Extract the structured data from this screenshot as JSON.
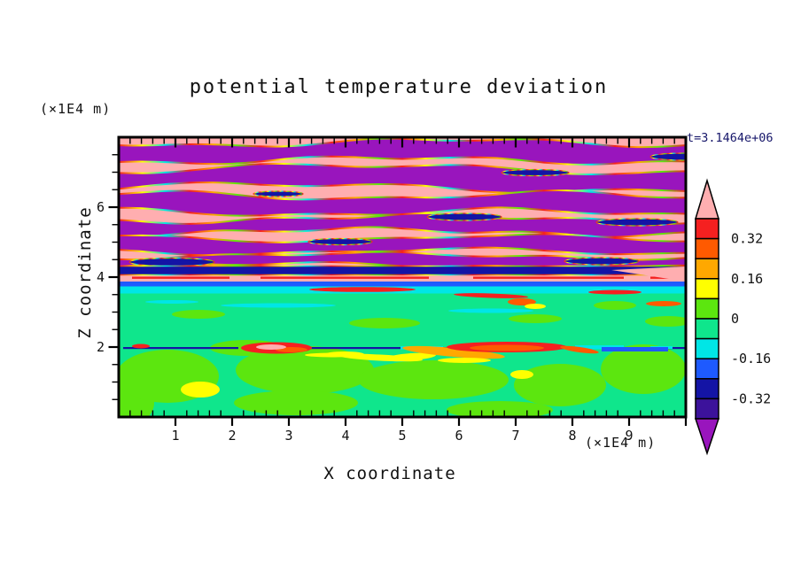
{
  "title": "potential temperature deviation",
  "timestamp": "t=3.1464e+06",
  "axes": {
    "x": {
      "label": "X coordinate",
      "unit": "(×1E4 m)",
      "range": [
        0,
        10
      ],
      "major_ticks": [
        1,
        2,
        3,
        4,
        5,
        6,
        7,
        8,
        9
      ],
      "minor_step": 0.2
    },
    "z": {
      "label": "Z coordinate",
      "unit": "(×1E4 m)",
      "range": [
        0,
        8
      ],
      "major_ticks": [
        2,
        4,
        6
      ],
      "minor_step": 0.5
    }
  },
  "palette": {
    "pink": "#FFAEB0",
    "red": "#F52020",
    "orangered": "#FF5A00",
    "orange": "#FFA800",
    "yellow": "#FFFF00",
    "chartreuse": "#5CE60F",
    "springgreen": "#0FE68C",
    "cyan": "#00E6E6",
    "blue": "#1E5AFF",
    "navy": "#1414A5",
    "indigo": "#3C129B",
    "purple": "#9915BD",
    "frame": "#000000"
  },
  "colorbar": {
    "top_arrow": "pink",
    "bottom_arrow": "purple",
    "box_colors": [
      "red",
      "orangered",
      "orange",
      "yellow",
      "chartreuse",
      "springgreen",
      "cyan",
      "blue",
      "navy",
      "indigo"
    ],
    "labels": [
      "0.32",
      "0.16",
      "0",
      "-0.16",
      "-0.32"
    ],
    "label_boundaries": [
      1,
      3,
      5,
      7,
      9
    ]
  },
  "chart_data": {
    "type": "heatmap",
    "title": "potential temperature deviation",
    "xlabel": "X coordinate (×1E4 m)",
    "ylabel": "Z coordinate (×1E4 m)",
    "x_range": [
      0,
      10
    ],
    "z_range": [
      0,
      8
    ],
    "time_annotation": "t=3.1464e+06",
    "value_levels": {
      "contour_interval": 0.08,
      "labeled": [
        0.32,
        0.16,
        0,
        -0.16,
        -0.32
      ],
      "above_max": 0.4,
      "below_min": -0.4
    },
    "regions": [
      "z 4-8: alternating pink (>0.4) and purple (<-0.4) wavy gravity-wave bands with thin red/yellow/cyan contour fringes and small navy patches",
      "z 3.6-4: dark navy/indigo band, pink strip with red streaks, full-width blue line, cyan strip",
      "z 0-3.5: spring-green (-0.08..0) background with chartreuse (0..0.08) blobs and small yellow patches",
      "z ~2: thin navy shear line with red/orange/yellow billows and cyan/blue segments"
    ],
    "render": {
      "bands": [
        [
          6,
          26,
          4,
          1.2,
          0.3,
          2,
          3.3,
          1.7
        ],
        [
          36,
          57,
          5,
          0.9,
          2.4,
          2.5,
          2.7,
          0.4
        ],
        [
          66,
          85,
          4,
          1.4,
          4.2,
          2,
          3.1,
          2.2
        ],
        [
          92,
          107,
          4,
          1.1,
          1.0,
          2,
          3.6,
          5.0
        ],
        [
          114,
          129,
          3.5,
          1.3,
          5.3,
          1.5,
          2.9,
          3.1
        ],
        [
          134,
          145,
          3,
          1.0,
          2.0,
          1.5,
          3.4,
          0.9
        ]
      ],
      "navy_blobs": [
        {
          "cx": 60,
          "cy": 141,
          "rx": 48,
          "ry": 4.5
        },
        {
          "cx": 250,
          "cy": 118,
          "rx": 36,
          "ry": 3.5
        },
        {
          "cx": 390,
          "cy": 90,
          "rx": 42,
          "ry": 4
        },
        {
          "cx": 585,
          "cy": 96,
          "rx": 46,
          "ry": 4
        },
        {
          "cx": 470,
          "cy": 40,
          "rx": 38,
          "ry": 3.5
        },
        {
          "cx": 640,
          "cy": 22,
          "rx": 40,
          "ry": 4
        },
        {
          "cx": 180,
          "cy": 64,
          "rx": 28,
          "ry": 3
        },
        {
          "cx": 545,
          "cy": 140,
          "rx": 42,
          "ry": 4
        }
      ],
      "strips": [
        {
          "y": 145.5,
          "h": 10,
          "color": "navy"
        },
        {
          "y": 163,
          "h": 5.5,
          "color": "blue"
        },
        {
          "y": 168.5,
          "h": 8,
          "color": "cyan"
        }
      ],
      "red_segs": [
        {
          "x": 15,
          "w": 110
        },
        {
          "x": 160,
          "w": 190
        },
        {
          "x": 400,
          "w": 170
        },
        {
          "x": 600,
          "w": 40
        }
      ],
      "pink_wedge": "556,150 640,146 640,163",
      "green_top": 176,
      "chartreuse_blobs": [
        {
          "cx": 10,
          "cy": 300,
          "rx": 30,
          "ry": 25
        },
        {
          "cx": 55,
          "cy": 270,
          "rx": 58,
          "ry": 30
        },
        {
          "cx": 210,
          "cy": 263,
          "rx": 78,
          "ry": 27
        },
        {
          "cx": 355,
          "cy": 274,
          "rx": 85,
          "ry": 22
        },
        {
          "cx": 498,
          "cy": 280,
          "rx": 52,
          "ry": 24
        },
        {
          "cx": 592,
          "cy": 262,
          "rx": 48,
          "ry": 28
        },
        {
          "cx": 145,
          "cy": 238,
          "rx": 42,
          "ry": 9
        },
        {
          "cx": 300,
          "cy": 210,
          "rx": 40,
          "ry": 6
        },
        {
          "cx": 90,
          "cy": 200,
          "rx": 30,
          "ry": 5
        },
        {
          "cx": 620,
          "cy": 208,
          "rx": 26,
          "ry": 6
        },
        {
          "cx": 470,
          "cy": 205,
          "rx": 30,
          "ry": 5
        },
        {
          "cx": 560,
          "cy": 190,
          "rx": 24,
          "ry": 5
        },
        {
          "cx": 200,
          "cy": 300,
          "rx": 70,
          "ry": 14
        },
        {
          "cx": 430,
          "cy": 308,
          "rx": 60,
          "ry": 10
        }
      ],
      "cyan_wisps": [
        {
          "cx": 180,
          "cy": 190,
          "rx": 65,
          "ry": 2.5
        },
        {
          "cx": 420,
          "cy": 196,
          "rx": 48,
          "ry": 2.5
        },
        {
          "cx": 60,
          "cy": 186,
          "rx": 30,
          "ry": 2
        }
      ],
      "yellow_blobs": [
        {
          "cx": 92,
          "cy": 285,
          "rx": 22,
          "ry": 9
        },
        {
          "cx": 455,
          "cy": 268,
          "rx": 13,
          "ry": 5
        },
        {
          "cx": 330,
          "cy": 248,
          "rx": 28,
          "ry": 4,
          "rot": -4
        },
        {
          "cx": 255,
          "cy": 245,
          "rx": 22,
          "ry": 3
        }
      ],
      "transition_streaks": [
        {
          "cx": 275,
          "cy": 172,
          "rx": 60,
          "ry": 2.8,
          "fill": "red"
        },
        {
          "cx": 420,
          "cy": 179,
          "rx": 42,
          "ry": 2.5,
          "rot": 2,
          "fill": "red"
        },
        {
          "cx": 455,
          "cy": 186,
          "rx": 16,
          "ry": 4,
          "fill": "orangered"
        },
        {
          "cx": 470,
          "cy": 191,
          "rx": 12,
          "ry": 3,
          "fill": "yellow"
        },
        {
          "cx": 560,
          "cy": 175,
          "rx": 30,
          "ry": 2.5,
          "fill": "red"
        },
        {
          "cx": 615,
          "cy": 188,
          "rx": 20,
          "ry": 3,
          "fill": "orangered"
        }
      ],
      "shear_navy_segs": [
        {
          "x": 5,
          "w": 130
        },
        {
          "x": 155,
          "w": 175
        },
        {
          "x": 360,
          "w": 120
        },
        {
          "x": 500,
          "w": 140
        }
      ],
      "shear_cyan_segs": [
        {
          "x": 318,
          "y": 236,
          "w": 48,
          "h": 4
        },
        {
          "x": 515,
          "y": 235,
          "w": 55,
          "h": 4.5
        },
        {
          "x": 600,
          "y": 236,
          "w": 25,
          "h": 3
        }
      ],
      "shear_blue_segs": [
        {
          "x": 545,
          "y": 237,
          "w": 75,
          "h": 5
        },
        {
          "x": 370,
          "y": 237,
          "w": 30,
          "h": 3
        }
      ],
      "eddies": [
        {
          "cx": 378,
          "cy": 243,
          "rx": 58,
          "ry": 5,
          "rot": 5,
          "fill": "orange"
        },
        {
          "cx": 295,
          "cy": 249,
          "rx": 48,
          "ry": 3.5,
          "rot": 3,
          "fill": "yellow"
        },
        {
          "cx": 390,
          "cy": 252,
          "rx": 30,
          "ry": 3,
          "fill": "yellow"
        },
        {
          "cx": 240,
          "cy": 246,
          "rx": 30,
          "ry": 2.5,
          "fill": "yellow"
        },
        {
          "cx": 178,
          "cy": 238,
          "rx": 40,
          "ry": 6.5,
          "fill": "red"
        },
        {
          "cx": 195,
          "cy": 240,
          "rx": 18,
          "ry": 3,
          "fill": "orangered"
        },
        {
          "cx": 172,
          "cy": 237,
          "rx": 17,
          "ry": 3,
          "fill": "pink"
        },
        {
          "cx": 438,
          "cy": 237,
          "rx": 68,
          "ry": 6,
          "fill": "red"
        },
        {
          "cx": 438,
          "cy": 238,
          "rx": 42,
          "ry": 3.5,
          "fill": "orangered"
        },
        {
          "cx": 520,
          "cy": 240,
          "rx": 22,
          "ry": 3,
          "rot": 8,
          "fill": "orangered"
        },
        {
          "cx": 25,
          "cy": 236,
          "rx": 10,
          "ry": 2.5,
          "fill": "red"
        }
      ]
    }
  }
}
